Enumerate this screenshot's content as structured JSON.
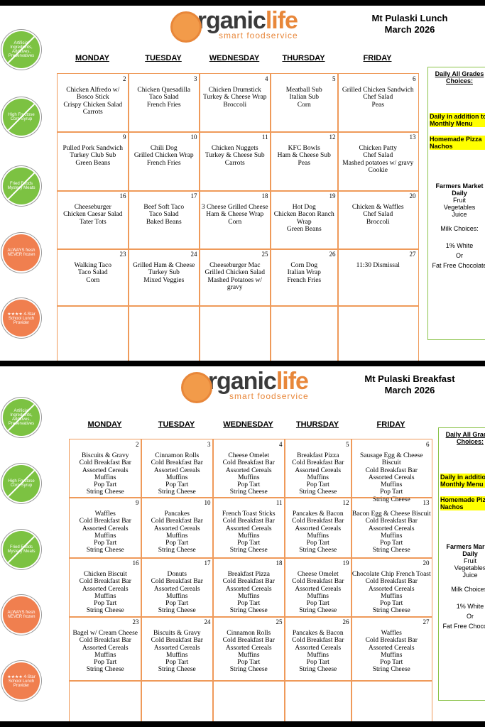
{
  "menus": [
    {
      "logo": {
        "brand_a": "organic",
        "brand_b": "life",
        "tagline": "smart foodservice"
      },
      "title": [
        "Mt Pulaski Lunch",
        "March 2026"
      ],
      "badges": [
        "Artificial Ingredients, Additives, Preservatives",
        "High Fructose Corn Syrup",
        "Fried Foods Mystery Meats",
        "ALWAYS fresh NEVER frozen",
        "★★★★ 4-Star School Lunch Provider"
      ],
      "days": [
        "MONDAY",
        "TUESDAY",
        "WEDNESDAY",
        "THURSDAY",
        "FRIDAY"
      ],
      "weeks": [
        [
          {
            "day": "2",
            "items": [
              "Chicken Alfredo w/ Bosco Stick",
              "Crispy Chicken Salad",
              "Carrots"
            ]
          },
          {
            "day": "3",
            "items": [
              "Chicken Quesadilla",
              "Taco Salad",
              "French Fries"
            ]
          },
          {
            "day": "4",
            "items": [
              "Chicken Drumstick",
              "Turkey & Cheese Wrap",
              "Broccoli"
            ]
          },
          {
            "day": "5",
            "items": [
              "Meatball Sub",
              "Italian Sub",
              "Corn"
            ]
          },
          {
            "day": "6",
            "items": [
              "Grilled Chicken Sandwich",
              "Chef Salad",
              "Peas"
            ]
          }
        ],
        [
          {
            "day": "9",
            "items": [
              "Pulled Pork Sandwich",
              "Turkey Club Sub",
              "Green Beans"
            ]
          },
          {
            "day": "10",
            "items": [
              "Chili Dog",
              "Grilled Chicken Wrap",
              "French Fries"
            ]
          },
          {
            "day": "11",
            "items": [
              "Chicken Nuggets",
              "Turkey & Cheese Sub",
              "Carrots"
            ]
          },
          {
            "day": "12",
            "items": [
              "KFC Bowls",
              "Ham & Cheese Sub",
              "Peas"
            ]
          },
          {
            "day": "13",
            "items": [
              "Chicken Patty",
              "Chef Salad",
              "Mashed potatoes w/ gravy",
              "Cookie"
            ]
          }
        ],
        [
          {
            "day": "16",
            "items": [
              "Cheeseburger",
              "Chicken Caesar Salad",
              "Tater Tots"
            ]
          },
          {
            "day": "17",
            "items": [
              "Beef Soft Taco",
              "Taco Salad",
              "Baked Beans"
            ]
          },
          {
            "day": "18",
            "items": [
              "3 Cheese Grilled Cheese",
              "Ham & Cheese Wrap",
              "Corn"
            ]
          },
          {
            "day": "19",
            "items": [
              "Hot Dog",
              "Chicken Bacon Ranch Wrap",
              "Green Beans"
            ]
          },
          {
            "day": "20",
            "items": [
              "Chicken & Waffles",
              "Chef Salad",
              "Broccoli"
            ]
          }
        ],
        [
          {
            "day": "23",
            "items": [
              "Walking Taco",
              "Taco Salad",
              "Corn"
            ]
          },
          {
            "day": "24",
            "items": [
              "Grilled Ham & Cheese",
              "Turkey Sub",
              "Mixed Veggies"
            ]
          },
          {
            "day": "25",
            "items": [
              "Cheeseburger Mac",
              "Grilled Chicken Salad",
              "Mashed Potatoes w/ gravy"
            ]
          },
          {
            "day": "26",
            "items": [
              "Corn Dog",
              "Italian Wrap",
              "French Fries"
            ]
          },
          {
            "day": "27",
            "items": [
              "11:30 Dismissal"
            ]
          }
        ]
      ],
      "side": {
        "heading": "Daily All Grades Choices:",
        "highlighted": [
          "Daily in addition to Monthly Menu",
          "Homemade Pizza Nachos"
        ],
        "farmers_market": [
          "Farmers Market Daily",
          "Fruit",
          "Vegetables",
          "Juice"
        ],
        "milk": [
          "Milk Choices:",
          "1% White",
          "Or",
          "Fat Free Chocolate"
        ]
      }
    },
    {
      "logo": {
        "brand_a": "organic",
        "brand_b": "life",
        "tagline": "smart foodservice"
      },
      "title": [
        "Mt Pulaski Breakfast",
        "March 2026"
      ],
      "badges": [
        "Artificial Ingredients, Additives, Preservatives",
        "High Fructose Corn Syrup",
        "Fried Foods Mystery Meats",
        "ALWAYS fresh NEVER frozen",
        "★★★★ 4-Star School Lunch Provider"
      ],
      "days": [
        "MONDAY",
        "TUESDAY",
        "WEDNESDAY",
        "THURSDAY",
        "FRIDAY"
      ],
      "weeks": [
        [
          {
            "day": "2",
            "items": [
              "Biscuits & Gravy",
              "Cold Breakfast Bar",
              "Assorted Cereals",
              "Muffins",
              "Pop Tart",
              "String Cheese"
            ]
          },
          {
            "day": "3",
            "items": [
              "Cinnamon Rolls",
              "Cold Breakfast Bar",
              "Assorted Cereals",
              "Muffins",
              "Pop Tart",
              "String Cheese"
            ]
          },
          {
            "day": "4",
            "items": [
              "Cheese Omelet",
              "Cold Breakfast Bar",
              "Assorted Cereals",
              "Muffins",
              "Pop Tart",
              "String Cheese"
            ]
          },
          {
            "day": "5",
            "items": [
              "Breakfast Pizza",
              "Cold Breakfast Bar",
              "Assorted Cereals",
              "Muffins",
              "Pop Tart",
              "String Cheese"
            ]
          },
          {
            "day": "6",
            "items": [
              "Sausage Egg & Cheese Biscuit",
              "Cold Breakfast Bar",
              "Assorted Cereals",
              "Muffins",
              "Pop Tart",
              "String Cheese"
            ]
          }
        ],
        [
          {
            "day": "9",
            "items": [
              "Waffles",
              "Cold Breakfast Bar",
              "Assorted Cereals",
              "Muffins",
              "Pop Tart",
              "String Cheese"
            ]
          },
          {
            "day": "10",
            "items": [
              "Pancakes",
              "Cold Breakfast Bar",
              "Assorted Cereals",
              "Muffins",
              "Pop Tart",
              "String Cheese"
            ]
          },
          {
            "day": "11",
            "items": [
              "French Toast Sticks",
              "Cold Breakfast Bar",
              "Assorted Cereals",
              "Muffins",
              "Pop Tart",
              "String Cheese"
            ]
          },
          {
            "day": "12",
            "items": [
              "Pancakes & Bacon",
              "Cold Breakfast Bar",
              "Assorted Cereals",
              "Muffins",
              "Pop Tart",
              "String Cheese"
            ]
          },
          {
            "day": "13",
            "items": [
              "Bacon Egg & Cheese Biscuit",
              "Cold Breakfast Bar",
              "Assorted Cereals",
              "Muffins",
              "Pop Tart",
              "String Cheese"
            ]
          }
        ],
        [
          {
            "day": "16",
            "items": [
              "Chicken Biscuit",
              "Cold Breakfast Bar",
              "Assorted Cereals",
              "Muffins",
              "Pop Tart",
              "String Cheese"
            ]
          },
          {
            "day": "17",
            "items": [
              "Donuts",
              "Cold Breakfast Bar",
              "Assorted Cereals",
              "Muffins",
              "Pop Tart",
              "String Cheese"
            ]
          },
          {
            "day": "18",
            "items": [
              "Breakfast Pizza",
              "Cold Breakfast Bar",
              "Assorted Cereals",
              "Muffins",
              "Pop Tart",
              "String Cheese"
            ]
          },
          {
            "day": "19",
            "items": [
              "Cheese Omelet",
              "Cold Breakfast Bar",
              "Assorted Cereals",
              "Muffins",
              "Pop Tart",
              "String Cheese"
            ]
          },
          {
            "day": "20",
            "items": [
              "Chocolate Chip French Toast",
              "Cold Breakfast Bar",
              "Assorted Cereals",
              "Muffins",
              "Pop Tart",
              "String Cheese"
            ]
          }
        ],
        [
          {
            "day": "23",
            "items": [
              "Bagel w/ Cream Cheese",
              "Cold Breakfast Bar",
              "Assorted Cereals",
              "Muffins",
              "Pop Tart",
              "String Cheese"
            ]
          },
          {
            "day": "24",
            "items": [
              "Biscuits & Gravy",
              "Cold Breakfast Bar",
              "Assorted Cereals",
              "Muffins",
              "Pop Tart",
              "String Cheese"
            ]
          },
          {
            "day": "25",
            "items": [
              "Cinnamon Rolls",
              "Cold Breakfast Bar",
              "Assorted Cereals",
              "Muffins",
              "Pop Tart",
              "String Cheese"
            ]
          },
          {
            "day": "26",
            "items": [
              "Pancakes & Bacon",
              "Cold Breakfast Bar",
              "Assorted Cereals",
              "Muffins",
              "Pop Tart",
              "String Cheese"
            ]
          },
          {
            "day": "27",
            "items": [
              "Waffles",
              "Cold Breakfast Bar",
              "Assorted Cereals",
              "Muffins",
              "Pop Tart",
              "String Cheese"
            ]
          }
        ]
      ],
      "side": {
        "heading": "Daily All Grades Choices:",
        "highlighted": [
          "Daily in addition to Monthly Menu",
          "Homemade Pizza Nachos"
        ],
        "farmers_market": [
          "Farmers Market Daily",
          "Fruit",
          "Vegetables",
          "Juice"
        ],
        "milk": [
          "Milk Choices:",
          "1% White",
          "Or",
          "Fat Free Chocolate"
        ]
      }
    }
  ]
}
